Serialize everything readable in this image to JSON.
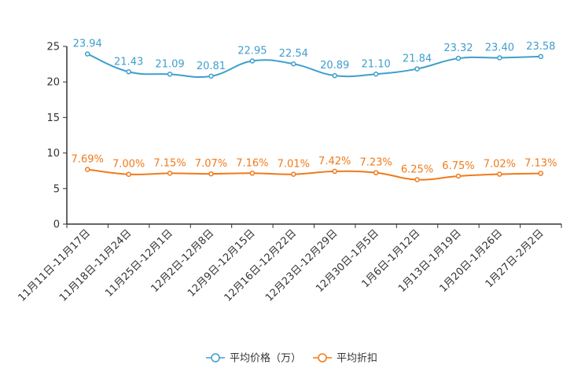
{
  "chart_data": {
    "type": "line",
    "title": "",
    "xlabel": "",
    "ylabel": "",
    "ylim": [
      0,
      25
    ],
    "yticks": [
      0,
      5,
      10,
      15,
      20,
      25
    ],
    "grid": false,
    "legend_position": "bottom",
    "categories": [
      "11月11日-11月17日",
      "11月18日-11月24日",
      "11月25日-12月1日",
      "12月2日-12月8日",
      "12月9日-12月15日",
      "12月16日-12月22日",
      "12月23日-12月29日",
      "12月30日-1月5日",
      "1月6日-1月12日",
      "1月13日-1月19日",
      "1月20日-1月26日",
      "1月27日-2月2日"
    ],
    "series": [
      {
        "name": "平均价格（万）",
        "color": "#3f9fcc",
        "values": [
          23.94,
          21.43,
          21.09,
          20.81,
          22.95,
          22.54,
          20.89,
          21.1,
          21.84,
          23.32,
          23.4,
          23.58
        ],
        "labels": [
          "23.94",
          "21.43",
          "21.09",
          "20.81",
          "22.95",
          "22.54",
          "20.89",
          "21.10",
          "21.84",
          "23.32",
          "23.40",
          "23.58"
        ]
      },
      {
        "name": "平均折扣",
        "color": "#f07a1a",
        "values": [
          7.69,
          7.0,
          7.15,
          7.07,
          7.16,
          7.01,
          7.42,
          7.23,
          6.25,
          6.75,
          7.02,
          7.13
        ],
        "labels": [
          "7.69%",
          "7.00%",
          "7.15%",
          "7.07%",
          "7.16%",
          "7.01%",
          "7.42%",
          "7.23%",
          "6.25%",
          "6.75%",
          "7.02%",
          "7.13%"
        ]
      }
    ]
  }
}
